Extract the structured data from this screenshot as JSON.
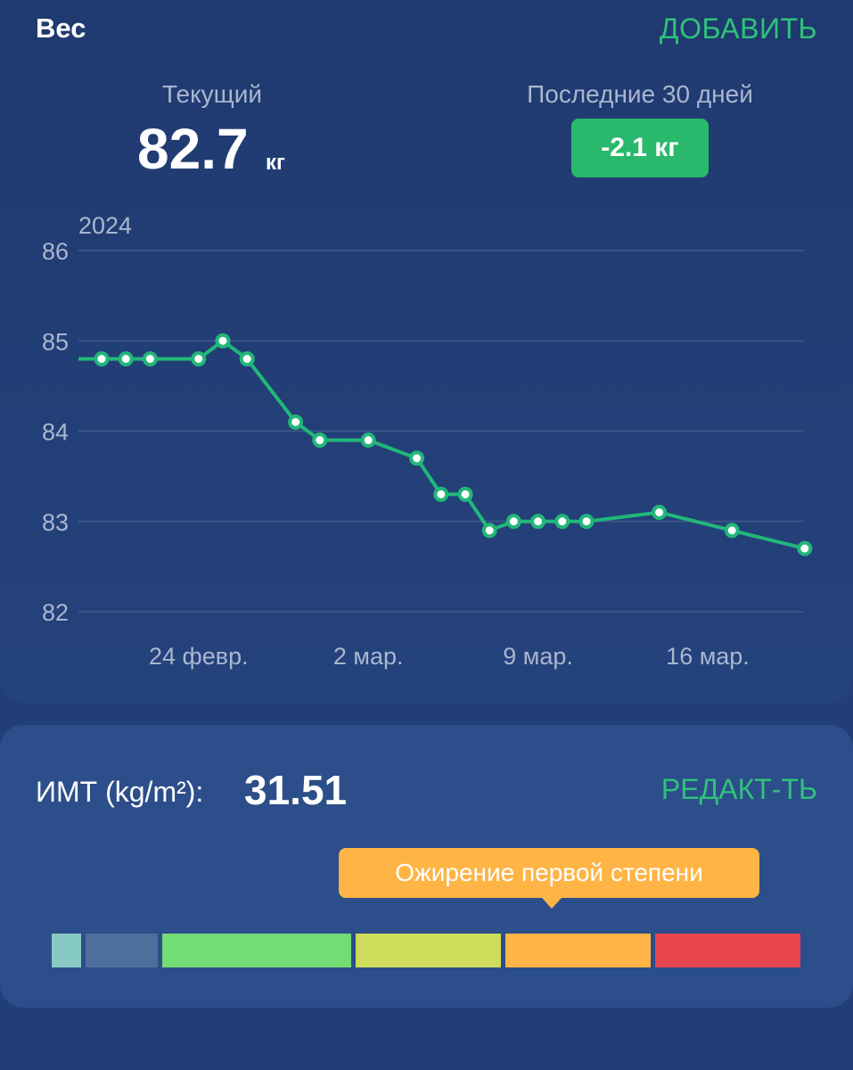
{
  "weight_card": {
    "title": "Вес",
    "add_label": "ДОБАВИТЬ",
    "current_label": "Текущий",
    "current_value": "82.7",
    "current_unit": "кг",
    "last30_label": "Последние 30 дней",
    "last30_change": "-2.1 кг"
  },
  "chart_data": {
    "type": "line",
    "year_label": "2024",
    "ylim": [
      82,
      86
    ],
    "y_ticks": [
      "82",
      "83",
      "84",
      "85",
      "86"
    ],
    "x_tick_labels": [
      {
        "date": "2024-02-24",
        "label": "24 февр."
      },
      {
        "date": "2024-03-02",
        "label": "2 мар."
      },
      {
        "date": "2024-03-09",
        "label": "9 мар."
      },
      {
        "date": "2024-03-16",
        "label": "16 мар."
      }
    ],
    "grid": true,
    "line_color": "#22b77a",
    "series": [
      {
        "points": [
          {
            "x": "2024-02-20",
            "y": 84.8
          },
          {
            "x": "2024-02-21",
            "y": 84.8
          },
          {
            "x": "2024-02-22",
            "y": 84.8
          },
          {
            "x": "2024-02-24",
            "y": 84.8
          },
          {
            "x": "2024-02-25",
            "y": 85.0
          },
          {
            "x": "2024-02-26",
            "y": 84.8
          },
          {
            "x": "2024-02-28",
            "y": 84.1
          },
          {
            "x": "2024-02-29",
            "y": 83.9
          },
          {
            "x": "2024-03-02",
            "y": 83.9
          },
          {
            "x": "2024-03-04",
            "y": 83.7
          },
          {
            "x": "2024-03-05",
            "y": 83.3
          },
          {
            "x": "2024-03-06",
            "y": 83.3
          },
          {
            "x": "2024-03-07",
            "y": 82.9
          },
          {
            "x": "2024-03-08",
            "y": 83.0
          },
          {
            "x": "2024-03-09",
            "y": 83.0
          },
          {
            "x": "2024-03-10",
            "y": 83.0
          },
          {
            "x": "2024-03-11",
            "y": 83.0
          },
          {
            "x": "2024-03-14",
            "y": 83.1
          },
          {
            "x": "2024-03-17",
            "y": 82.9
          },
          {
            "x": "2024-03-20",
            "y": 82.7
          }
        ]
      }
    ]
  },
  "bmi_card": {
    "label": "ИМТ (kg/m²):",
    "value": "31.51",
    "edit_label": "РЕДАКТ-ТЬ",
    "category": "Ожирение первой степени",
    "scale_colors": [
      "#87c9c4",
      "#4e6f9c",
      "#74dc74",
      "#cddc5a",
      "#ffb446",
      "#e8454f"
    ],
    "active_segment": 4
  }
}
